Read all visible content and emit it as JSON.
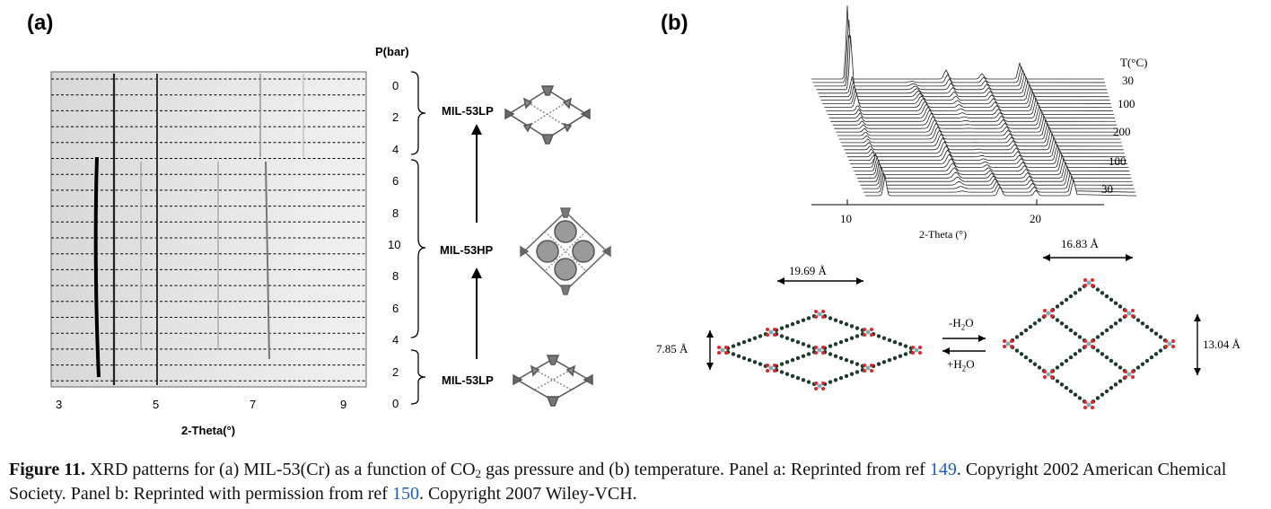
{
  "panel_a": {
    "label": "(a)",
    "pressure_header": "P(bar)",
    "pressure_ticks": [
      "0",
      "2",
      "4",
      "6",
      "8",
      "10",
      "8",
      "6",
      "4",
      "2",
      "0"
    ],
    "x_ticks": [
      "3",
      "5",
      "7",
      "9"
    ],
    "x_label": "2-Theta(°)",
    "phase_labels": [
      "MIL-53LP",
      "MIL-53HP",
      "MIL-53LP"
    ]
  },
  "panel_b": {
    "label": "(b)",
    "temp_header": "T(°C)",
    "temp_ticks": [
      "30",
      "100",
      "200",
      "100",
      "30"
    ],
    "x_ticks": [
      "10",
      "20"
    ],
    "x_label": "2-Theta (°)",
    "dim_top_left": "19.69 Å",
    "dim_side_left": "7.85 Å",
    "dim_top_right": "16.83 Å",
    "dim_side_right": "13.04 Å",
    "arrow_minus": "-H",
    "arrow_minus_sub": "2",
    "arrow_minus_tail": "O",
    "arrow_plus": "+H",
    "arrow_plus_sub": "2",
    "arrow_plus_tail": "O"
  },
  "caption": {
    "figure_label": "Figure 11.",
    "text_1": " XRD patterns for (a) MIL-53(Cr) as a function of CO",
    "text_sub": "2",
    "text_2": " gas pressure and (b) temperature. Panel a: Reprinted from ref ",
    "ref_1": "149",
    "text_3": ". Copyright 2002 American Chemical Society. Panel b: Reprinted with permission from ref ",
    "ref_2": "150",
    "text_4": ". Copyright 2007 Wiley-VCH."
  },
  "colors": {
    "ref_link": "#1a5eb8",
    "oxygen_red": "#e0262a",
    "carbon_dark": "#1e3a2c"
  }
}
